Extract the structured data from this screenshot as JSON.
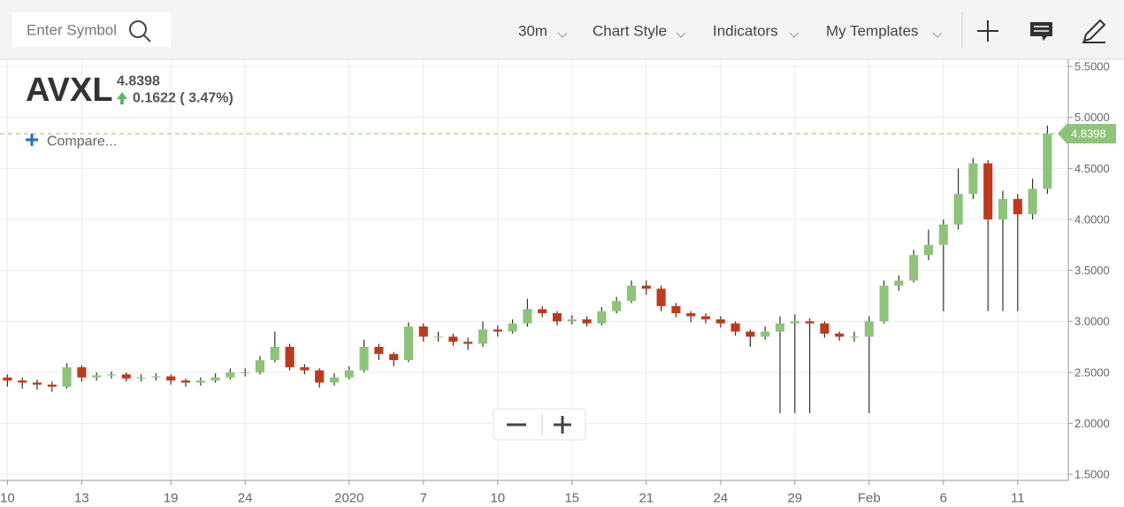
{
  "toolbar": {
    "search_placeholder": "Enter Symbol",
    "interval": "30m",
    "chart_style": "Chart Style",
    "indicators": "Indicators",
    "templates": "My Templates"
  },
  "quote": {
    "symbol": "AVXL",
    "change": "0.1622 ( 3.47%)",
    "compare": "Compare..."
  },
  "chart_data": {
    "type": "candlestick",
    "last_price": 4.8398,
    "categories": [
      "10",
      null,
      null,
      null,
      null,
      "13",
      null,
      null,
      null,
      null,
      null,
      "19",
      null,
      null,
      null,
      null,
      "24",
      null,
      null,
      null,
      null,
      null,
      null,
      "2020",
      null,
      null,
      null,
      null,
      "7",
      null,
      null,
      null,
      null,
      "10",
      null,
      null,
      null,
      null,
      "15",
      null,
      null,
      null,
      null,
      "21",
      null,
      null,
      null,
      null,
      "24",
      null,
      null,
      null,
      null,
      "29",
      null,
      null,
      null,
      null,
      "Feb",
      null,
      null,
      null,
      null,
      "6",
      null,
      null,
      null,
      null,
      "11",
      null,
      null
    ],
    "open": [
      2.45,
      2.42,
      2.4,
      2.38,
      2.36,
      2.55,
      2.45,
      2.47,
      2.48,
      2.44,
      2.45,
      2.46,
      2.42,
      2.4,
      2.42,
      2.45,
      2.5,
      2.5,
      2.62,
      2.75,
      2.55,
      2.52,
      2.4,
      2.45,
      2.52,
      2.75,
      2.68,
      2.62,
      2.95,
      2.85,
      2.85,
      2.8,
      2.78,
      2.92,
      2.9,
      2.98,
      3.12,
      3.08,
      3.0,
      3.02,
      2.98,
      3.1,
      3.2,
      3.35,
      3.32,
      3.15,
      3.08,
      3.05,
      3.02,
      2.98,
      2.9,
      2.85,
      2.9,
      2.98,
      3.0,
      2.98,
      2.88,
      2.85,
      2.85,
      3.0,
      3.35,
      3.4,
      3.65,
      3.75,
      3.95,
      4.25,
      4.55,
      4.0,
      4.2,
      4.05,
      4.3
    ],
    "high": [
      2.48,
      2.45,
      2.43,
      2.41,
      2.59,
      2.57,
      2.5,
      2.51,
      2.5,
      2.48,
      2.49,
      2.48,
      2.44,
      2.45,
      2.49,
      2.54,
      2.54,
      2.66,
      2.9,
      2.78,
      2.58,
      2.54,
      2.49,
      2.56,
      2.82,
      2.78,
      2.7,
      2.99,
      2.98,
      2.9,
      2.88,
      2.84,
      3.0,
      2.96,
      3.02,
      3.22,
      3.15,
      3.1,
      3.06,
      3.05,
      3.14,
      3.24,
      3.4,
      3.4,
      3.35,
      3.18,
      3.1,
      3.08,
      3.05,
      3.0,
      2.92,
      2.95,
      3.05,
      3.07,
      3.03,
      3.0,
      2.9,
      2.9,
      3.05,
      3.4,
      3.45,
      3.7,
      3.9,
      4.0,
      4.5,
      4.6,
      4.58,
      4.28,
      4.25,
      4.4,
      4.92
    ],
    "low": [
      2.36,
      2.34,
      2.33,
      2.31,
      2.34,
      2.41,
      2.42,
      2.44,
      2.41,
      2.41,
      2.42,
      2.38,
      2.36,
      2.37,
      2.4,
      2.43,
      2.46,
      2.48,
      2.6,
      2.52,
      2.48,
      2.35,
      2.37,
      2.43,
      2.5,
      2.62,
      2.56,
      2.6,
      2.8,
      2.8,
      2.76,
      2.72,
      2.75,
      2.85,
      2.88,
      2.95,
      3.04,
      2.96,
      2.97,
      2.95,
      2.96,
      3.08,
      3.18,
      3.26,
      3.1,
      3.04,
      2.99,
      2.98,
      2.94,
      2.86,
      2.75,
      2.82,
      2.1,
      2.1,
      2.1,
      2.84,
      2.81,
      2.8,
      2.1,
      2.98,
      3.3,
      3.38,
      3.6,
      3.1,
      3.9,
      4.2,
      3.1,
      3.1,
      3.1,
      4.0,
      4.25
    ],
    "close": [
      2.42,
      2.4,
      2.38,
      2.36,
      2.55,
      2.45,
      2.47,
      2.48,
      2.44,
      2.45,
      2.46,
      2.42,
      2.4,
      2.42,
      2.45,
      2.5,
      2.5,
      2.62,
      2.75,
      2.55,
      2.52,
      2.4,
      2.45,
      2.52,
      2.75,
      2.68,
      2.62,
      2.95,
      2.85,
      2.85,
      2.8,
      2.78,
      2.92,
      2.9,
      2.98,
      3.12,
      3.08,
      3.0,
      3.02,
      2.98,
      3.1,
      3.2,
      3.35,
      3.32,
      3.15,
      3.08,
      3.05,
      3.02,
      2.98,
      2.9,
      2.85,
      2.9,
      2.98,
      3.0,
      2.98,
      2.88,
      2.85,
      2.85,
      3.0,
      3.35,
      3.4,
      3.65,
      3.75,
      3.95,
      4.25,
      4.55,
      4.0,
      4.2,
      4.05,
      4.3,
      4.8398
    ],
    "up_color": "#8dc47a",
    "down_color": "#c0391b",
    "wick_color": "#333333",
    "ylim": [
      1.44,
      5.57
    ],
    "yticks": [
      {
        "value": 1.5,
        "label": "1.5000"
      },
      {
        "value": 2,
        "label": "2.0000"
      },
      {
        "value": 2.5,
        "label": "2.5000"
      },
      {
        "value": 3,
        "label": "3.0000"
      },
      {
        "value": 3.5,
        "label": "3.5000"
      },
      {
        "value": 4,
        "label": "4.0000"
      },
      {
        "value": 4.5,
        "label": "4.5000"
      },
      {
        "value": 5,
        "label": "5.0000"
      },
      {
        "value": 5.5,
        "label": "5.5000"
      }
    ],
    "grid": true
  }
}
